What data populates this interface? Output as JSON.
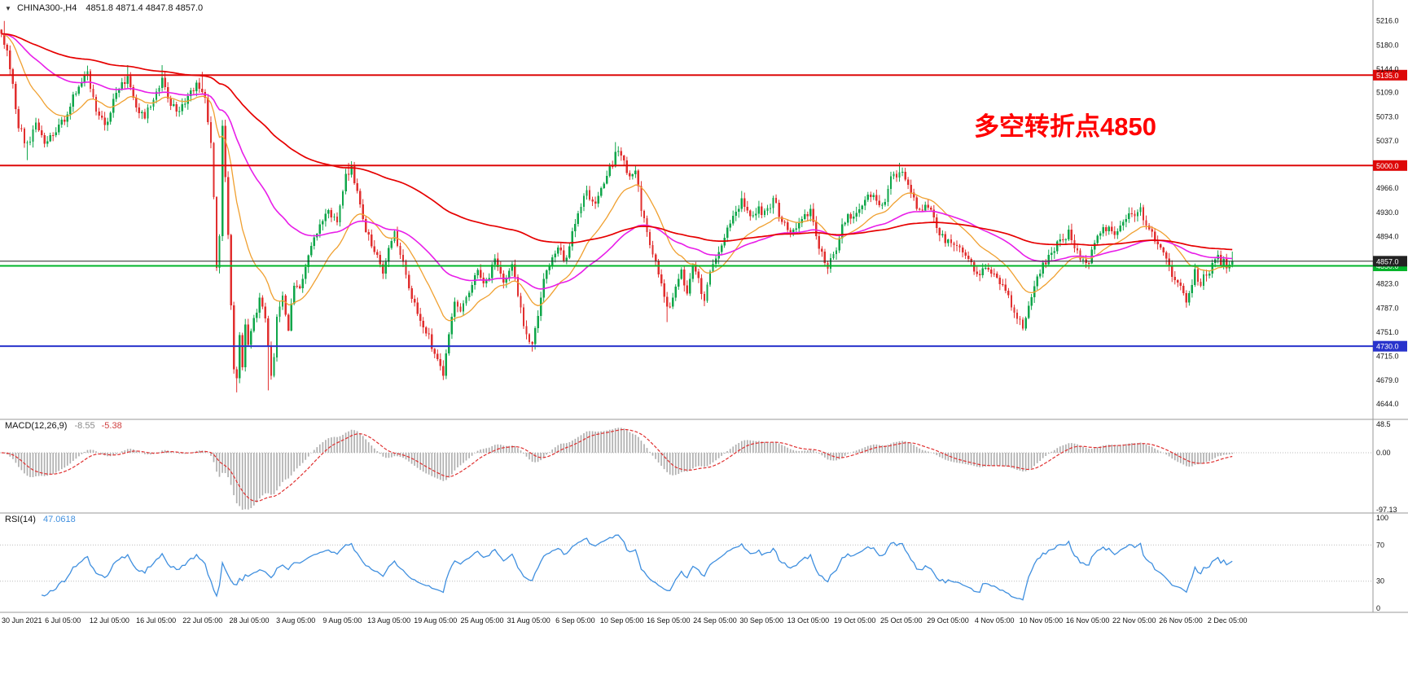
{
  "header": {
    "collapse_icon": "▼",
    "symbol_timeframe": "CHINA300-,H4",
    "ohlc": "4851.8 4871.4 4847.8 4857.0"
  },
  "annotation": {
    "text": "多空转折点4850",
    "color": "#ff0000"
  },
  "colors": {
    "background": "#ffffff",
    "up": "#0fa64a",
    "down": "#e12f2f",
    "ma_fast": "#f0a030",
    "ma_mid": "#e81ee8",
    "ma_slow": "#e60000",
    "level_red": "#dd0808",
    "level_green": "#00b42a",
    "level_blue": "#2833cc",
    "current": "#222222",
    "macd_hist": "#b0b0b0",
    "macd_signal": "#e03030",
    "rsi": "#3f8fdf",
    "separator": "#999999",
    "axis_text": "#111111",
    "grid_dotted": "#bbbbbb"
  },
  "chart_data": {
    "type": "candlestick",
    "title": "CHINA300-,H4",
    "symbol": "CHINA300-",
    "timeframe": "H4",
    "panels": [
      "price",
      "MACD",
      "RSI"
    ],
    "bars": 430,
    "x_tick_labels": [
      "30 Jun 2021",
      "6 Jul 05:00",
      "12 Jul 05:00",
      "16 Jul 05:00",
      "22 Jul 05:00",
      "28 Jul 05:00",
      "3 Aug 05:00",
      "9 Aug 05:00",
      "13 Aug 05:00",
      "19 Aug 05:00",
      "25 Aug 05:00",
      "31 Aug 05:00",
      "6 Sep 05:00",
      "10 Sep 05:00",
      "16 Sep 05:00",
      "24 Sep 05:00",
      "30 Sep 05:00",
      "13 Oct 05:00",
      "19 Oct 05:00",
      "25 Oct 05:00",
      "29 Oct 05:00",
      "4 Nov 05:00",
      "10 Nov 05:00",
      "16 Nov 05:00",
      "22 Nov 05:00",
      "26 Nov 05:00",
      "2 Dec 05:00"
    ],
    "y_tick_labels": [
      "5216.0",
      "5180.0",
      "5144.0",
      "5109.0",
      "5073.0",
      "5037.0",
      "4966.0",
      "4930.0",
      "4894.0",
      "4823.0",
      "4787.0",
      "4751.0",
      "4715.0",
      "4679.0",
      "4644.0"
    ],
    "price_anchors": [
      [
        0,
        5195
      ],
      [
        2,
        5170
      ],
      [
        4,
        5120
      ],
      [
        6,
        5060
      ],
      [
        9,
        5030
      ],
      [
        12,
        5060
      ],
      [
        15,
        5038
      ],
      [
        18,
        5050
      ],
      [
        22,
        5070
      ],
      [
        26,
        5110
      ],
      [
        30,
        5135
      ],
      [
        33,
        5085
      ],
      [
        36,
        5060
      ],
      [
        40,
        5105
      ],
      [
        44,
        5135
      ],
      [
        47,
        5080
      ],
      [
        50,
        5070
      ],
      [
        53,
        5100
      ],
      [
        56,
        5128
      ],
      [
        59,
        5090
      ],
      [
        62,
        5075
      ],
      [
        65,
        5110
      ],
      [
        68,
        5118
      ],
      [
        71,
        5095
      ],
      [
        73,
        5030
      ],
      [
        74,
        4950
      ],
      [
        75,
        4850
      ],
      [
        76,
        4890
      ],
      [
        77,
        5060
      ],
      [
        78,
        4980
      ],
      [
        79,
        4900
      ],
      [
        80,
        4790
      ],
      [
        81,
        4700
      ],
      [
        82,
        4680
      ],
      [
        83,
        4740
      ],
      [
        84,
        4700
      ],
      [
        85,
        4760
      ],
      [
        86,
        4730
      ],
      [
        88,
        4770
      ],
      [
        90,
        4800
      ],
      [
        92,
        4770
      ],
      [
        94,
        4690
      ],
      [
        95,
        4720
      ],
      [
        96,
        4780
      ],
      [
        98,
        4800
      ],
      [
        100,
        4760
      ],
      [
        102,
        4820
      ],
      [
        104,
        4810
      ],
      [
        106,
        4850
      ],
      [
        108,
        4880
      ],
      [
        111,
        4905
      ],
      [
        114,
        4930
      ],
      [
        117,
        4915
      ],
      [
        120,
        4985
      ],
      [
        122,
        4995
      ],
      [
        124,
        4955
      ],
      [
        127,
        4905
      ],
      [
        130,
        4870
      ],
      [
        133,
        4845
      ],
      [
        137,
        4895
      ],
      [
        140,
        4855
      ],
      [
        143,
        4800
      ],
      [
        146,
        4770
      ],
      [
        149,
        4745
      ],
      [
        152,
        4705
      ],
      [
        154,
        4685
      ],
      [
        156,
        4750
      ],
      [
        158,
        4795
      ],
      [
        160,
        4775
      ],
      [
        163,
        4815
      ],
      [
        166,
        4838
      ],
      [
        169,
        4826
      ],
      [
        172,
        4855
      ],
      [
        175,
        4828
      ],
      [
        178,
        4850
      ],
      [
        181,
        4788
      ],
      [
        183,
        4745
      ],
      [
        185,
        4737
      ],
      [
        187,
        4775
      ],
      [
        189,
        4835
      ],
      [
        191,
        4850
      ],
      [
        194,
        4875
      ],
      [
        197,
        4858
      ],
      [
        199,
        4895
      ],
      [
        201,
        4928
      ],
      [
        204,
        4958
      ],
      [
        207,
        4938
      ],
      [
        210,
        4978
      ],
      [
        213,
        5000
      ],
      [
        215,
        5028
      ],
      [
        217,
        5008
      ],
      [
        219,
        4978
      ],
      [
        221,
        4988
      ],
      [
        223,
        4938
      ],
      [
        225,
        4898
      ],
      [
        227,
        4868
      ],
      [
        229,
        4838
      ],
      [
        231,
        4798
      ],
      [
        233,
        4788
      ],
      [
        235,
        4818
      ],
      [
        237,
        4838
      ],
      [
        239,
        4808
      ],
      [
        241,
        4848
      ],
      [
        243,
        4830
      ],
      [
        245,
        4795
      ],
      [
        247,
        4840
      ],
      [
        249,
        4865
      ],
      [
        252,
        4898
      ],
      [
        255,
        4928
      ],
      [
        258,
        4948
      ],
      [
        261,
        4918
      ],
      [
        264,
        4938
      ],
      [
        266,
        4928
      ],
      [
        269,
        4948
      ],
      [
        272,
        4918
      ],
      [
        275,
        4898
      ],
      [
        278,
        4918
      ],
      [
        282,
        4928
      ],
      [
        285,
        4880
      ],
      [
        288,
        4845
      ],
      [
        291,
        4880
      ],
      [
        294,
        4918
      ],
      [
        298,
        4928
      ],
      [
        301,
        4948
      ],
      [
        304,
        4958
      ],
      [
        307,
        4938
      ],
      [
        310,
        4978
      ],
      [
        314,
        4993
      ],
      [
        317,
        4958
      ],
      [
        320,
        4928
      ],
      [
        323,
        4938
      ],
      [
        326,
        4908
      ],
      [
        329,
        4888
      ],
      [
        331,
        4878
      ],
      [
        334,
        4880
      ],
      [
        337,
        4858
      ],
      [
        340,
        4838
      ],
      [
        343,
        4852
      ],
      [
        347,
        4832
      ],
      [
        350,
        4812
      ],
      [
        353,
        4778
      ],
      [
        356,
        4762
      ],
      [
        359,
        4798
      ],
      [
        361,
        4828
      ],
      [
        363,
        4848
      ],
      [
        366,
        4868
      ],
      [
        369,
        4888
      ],
      [
        372,
        4898
      ],
      [
        375,
        4868
      ],
      [
        379,
        4858
      ],
      [
        382,
        4888
      ],
      [
        385,
        4908
      ],
      [
        388,
        4898
      ],
      [
        391,
        4918
      ],
      [
        395,
        4928
      ],
      [
        397,
        4938
      ],
      [
        399,
        4908
      ],
      [
        402,
        4888
      ],
      [
        405,
        4868
      ],
      [
        408,
        4838
      ],
      [
        411,
        4815
      ],
      [
        413,
        4800
      ],
      [
        416,
        4840
      ],
      [
        418,
        4825
      ],
      [
        421,
        4845
      ],
      [
        424,
        4862
      ],
      [
        427,
        4850
      ],
      [
        429,
        4857
      ]
    ],
    "wick_highs": [
      [
        1,
        5216
      ],
      [
        44,
        5150
      ],
      [
        56,
        5150
      ],
      [
        70,
        5140
      ],
      [
        121,
        5004
      ],
      [
        214,
        5035
      ],
      [
        258,
        4962
      ],
      [
        313,
        5004
      ],
      [
        397,
        4944
      ]
    ],
    "wick_lows": [
      [
        9,
        5008
      ],
      [
        82,
        4661
      ],
      [
        93,
        4664
      ],
      [
        154,
        4681
      ],
      [
        185,
        4722
      ],
      [
        232,
        4766
      ],
      [
        356,
        4757
      ],
      [
        413,
        4793
      ]
    ],
    "last_bar": {
      "open": 4851.8,
      "high": 4871.4,
      "low": 4847.8,
      "close": 4857.0
    },
    "moving_averages": [
      {
        "name": "fast",
        "period": 20,
        "color_key": "ma_fast"
      },
      {
        "name": "medium",
        "period": 60,
        "color_key": "ma_mid"
      },
      {
        "name": "slow",
        "period": 150,
        "color_key": "ma_slow"
      }
    ],
    "horizontal_levels": [
      {
        "value": 5135.0,
        "label": "5135.0",
        "color_key": "level_red"
      },
      {
        "value": 5000.0,
        "label": "5000.0",
        "color_key": "level_red"
      },
      {
        "value": 4850.0,
        "label": "4850.0",
        "color_key": "level_green"
      },
      {
        "value": 4730.0,
        "label": "4730.0",
        "color_key": "level_blue"
      }
    ],
    "current_price": {
      "value": 4857.0,
      "label": "4857.0",
      "color_key": "current"
    },
    "macd": {
      "label": "MACD(12,26,9)",
      "main_value": "-8.55",
      "signal_value": "-5.38",
      "fast": 12,
      "slow": 26,
      "signal": 9,
      "axis_labels": [
        "48.5",
        "0.00",
        "-97.13"
      ],
      "range": [
        -97.13,
        48.5
      ]
    },
    "rsi": {
      "label": "RSI(14)",
      "value": "47.0618",
      "period": 14,
      "axis_labels": [
        "100",
        "70",
        "30",
        "0"
      ],
      "levels": [
        30,
        70
      ],
      "range": [
        0,
        100
      ]
    }
  }
}
